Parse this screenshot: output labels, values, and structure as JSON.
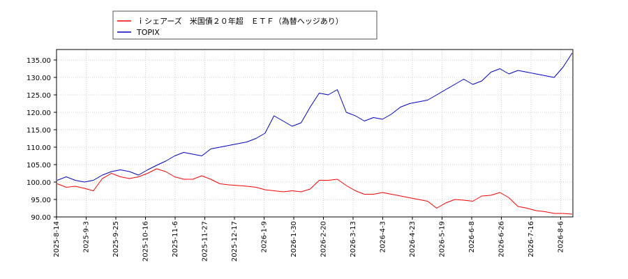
{
  "chart_data": {
    "type": "line",
    "title": "",
    "xlabel": "",
    "ylabel": "",
    "ylim": [
      90,
      138
    ],
    "y_ticks": [
      "90.00",
      "95.00",
      "100.00",
      "105.00",
      "110.00",
      "115.00",
      "120.00",
      "125.00",
      "130.00",
      "135.00"
    ],
    "x_ticks": [
      "2025-8-14",
      "2025-9-3",
      "2025-9-25",
      "2025-10-16",
      "2025-11-6",
      "2025-11-27",
      "2025-12-17",
      "2026-1-9",
      "2026-1-30",
      "2026-2-20",
      "2026-3-13",
      "2026-4-3",
      "2026-4-23",
      "2026-5-19",
      "2026-6-8",
      "2026-6-26",
      "2026-7-16",
      "2026-8-6"
    ],
    "grid": true,
    "legend_position": "top-left",
    "series": [
      {
        "name": "ｉシェアーズ　米国債２０年超　ＥＴＦ（為替ヘッジあり）",
        "color": "#ff0000",
        "values": [
          99.5,
          98.5,
          98.8,
          98.2,
          97.5,
          101.0,
          102.5,
          101.5,
          101.0,
          101.5,
          102.5,
          103.8,
          103.0,
          101.5,
          100.8,
          100.8,
          101.8,
          100.8,
          99.5,
          99.2,
          99.0,
          98.8,
          98.5,
          97.8,
          97.5,
          97.2,
          97.5,
          97.2,
          98.0,
          100.5,
          100.5,
          100.8,
          99.0,
          97.5,
          96.5,
          96.5,
          97.0,
          96.5,
          96.0,
          95.5,
          95.0,
          94.5,
          92.5,
          94.0,
          95.0,
          94.8,
          94.5,
          96.0,
          96.2,
          97.0,
          95.5,
          93.0,
          92.5,
          91.8,
          91.5,
          91.0,
          91.0,
          90.8
        ]
      },
      {
        "name": "TOPIX",
        "color": "#0000cc",
        "values": [
          100.5,
          101.5,
          100.5,
          100.0,
          100.5,
          102.0,
          103.0,
          103.5,
          103.0,
          102.0,
          103.5,
          104.8,
          106.0,
          107.5,
          108.5,
          108.0,
          107.5,
          109.5,
          110.0,
          110.5,
          111.0,
          111.5,
          112.5,
          114.0,
          119.0,
          117.5,
          116.0,
          117.0,
          121.5,
          125.5,
          125.0,
          126.5,
          120.0,
          119.0,
          117.5,
          118.5,
          118.0,
          119.5,
          121.5,
          122.5,
          123.0,
          123.5,
          125.0,
          126.5,
          128.0,
          129.5,
          128.0,
          129.0,
          131.5,
          132.5,
          131.0,
          132.0,
          131.5,
          131.0,
          130.5,
          130.0,
          133.0,
          137.0
        ]
      }
    ]
  }
}
